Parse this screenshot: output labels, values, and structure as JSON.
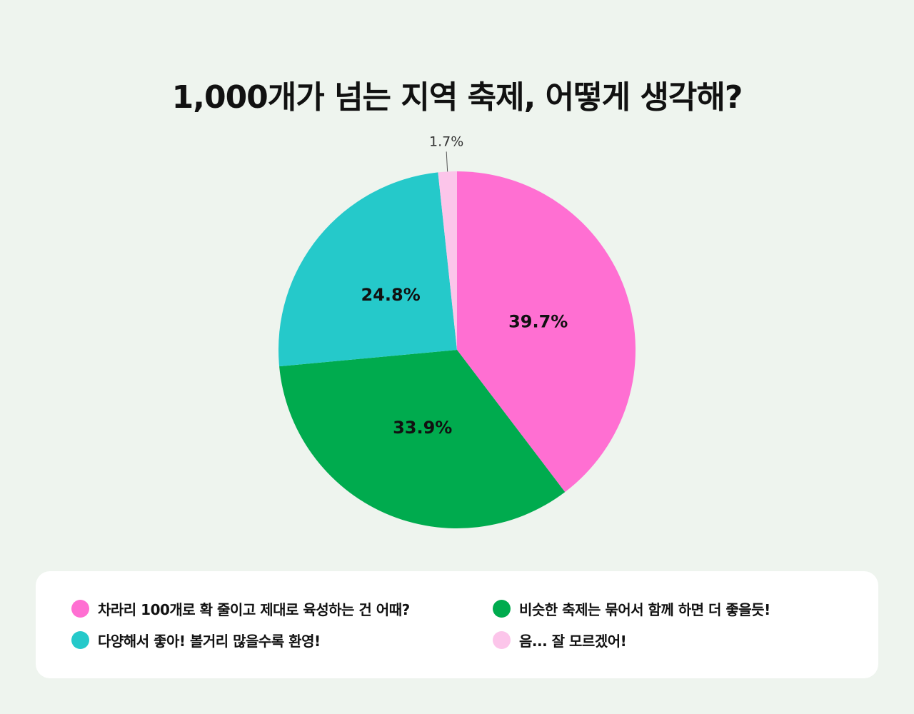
{
  "title": "1,000개가 넘는 지역 축제, 어떻게 생각해?",
  "chart_data": {
    "type": "pie",
    "title": "1,000개가 넘는 지역 축제, 어떻게 생각해?",
    "slices": [
      {
        "label": "차라리 100개로 확 줄이고 제대로 육성하는 건 어때?",
        "value": 39.7,
        "value_label": "39.7%",
        "color": "#ff6fd2"
      },
      {
        "label": "비슷한 축제는 묶어서 함께 하면 더 좋을듯!",
        "value": 33.9,
        "value_label": "33.9%",
        "color": "#00ab4e"
      },
      {
        "label": "다양해서 좋아! 볼거리 많을수록 환영!",
        "value": 24.8,
        "value_label": "24.8%",
        "color": "#25c9ca"
      },
      {
        "label": "음... 잘 모르겠어!",
        "value": 1.7,
        "value_label": "1.7%",
        "color": "#fcc5ea"
      }
    ],
    "legend_placement": "bottom"
  },
  "legend": {
    "items": [
      {
        "label": "차라리 100개로 확 줄이고 제대로 육성하는 건 어때?",
        "color": "#ff6fd2"
      },
      {
        "label": "비슷한 축제는 묶어서 함께 하면 더 좋을듯!",
        "color": "#00ab4e"
      },
      {
        "label": "다양해서 좋아! 볼거리 많을수록 환영!",
        "color": "#25c9ca"
      },
      {
        "label": "음... 잘 모르겠어!",
        "color": "#fcc5ea"
      }
    ]
  }
}
